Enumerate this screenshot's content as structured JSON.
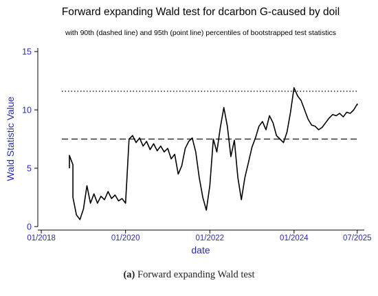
{
  "chart_data": {
    "type": "line",
    "title": "Forward expanding Wald test for dcarbon G-caused by doil",
    "subtitle": "with 90th (dashed line) and 95th (point line) percentiles of bootstrapped test statistics",
    "xlabel": "date",
    "ylabel": "Wald Statistic Value",
    "x_tick_labels": [
      "01/2018",
      "01/2020",
      "01/2022",
      "01/2024",
      "07/2025"
    ],
    "x_ticks": [
      "2018-01",
      "2020-01",
      "2022-01",
      "2024-01",
      "2025-07"
    ],
    "xlim": [
      "2017-12",
      "2025-09"
    ],
    "y_ticks": [
      0,
      5,
      10,
      15
    ],
    "ylim": [
      -0.3,
      15.3
    ],
    "grid": false,
    "colors": {
      "series": "#000000",
      "axis_text": "#2b2bb0",
      "title": "#000000"
    },
    "thresholds": [
      {
        "label": "90th percentile",
        "style": "dashed",
        "value": 7.5
      },
      {
        "label": "95th percentile",
        "style": "dotted",
        "value": 11.6
      }
    ],
    "series": [
      {
        "values": [
          [
            "2018-09",
            5.0
          ],
          [
            "2018-09",
            6.1
          ],
          [
            "2018-10",
            5.3
          ],
          [
            "2018-10",
            2.5
          ],
          [
            "2018-11",
            1.0
          ],
          [
            "2018-12",
            0.6
          ],
          [
            "2019-01",
            1.5
          ],
          [
            "2019-02",
            3.5
          ],
          [
            "2019-03",
            2.0
          ],
          [
            "2019-04",
            2.8
          ],
          [
            "2019-05",
            2.0
          ],
          [
            "2019-06",
            2.6
          ],
          [
            "2019-07",
            2.3
          ],
          [
            "2019-08",
            3.0
          ],
          [
            "2019-09",
            2.4
          ],
          [
            "2019-10",
            2.7
          ],
          [
            "2019-11",
            2.2
          ],
          [
            "2019-12",
            2.4
          ],
          [
            "2020-01",
            2.0
          ],
          [
            "2020-02",
            7.5
          ],
          [
            "2020-03",
            7.8
          ],
          [
            "2020-04",
            7.2
          ],
          [
            "2020-05",
            7.6
          ],
          [
            "2020-06",
            6.9
          ],
          [
            "2020-07",
            7.3
          ],
          [
            "2020-08",
            6.6
          ],
          [
            "2020-09",
            7.1
          ],
          [
            "2020-10",
            6.5
          ],
          [
            "2020-11",
            6.9
          ],
          [
            "2020-12",
            6.4
          ],
          [
            "2021-01",
            6.7
          ],
          [
            "2021-02",
            5.8
          ],
          [
            "2021-03",
            6.2
          ],
          [
            "2021-04",
            4.5
          ],
          [
            "2021-05",
            5.2
          ],
          [
            "2021-06",
            6.7
          ],
          [
            "2021-07",
            7.3
          ],
          [
            "2021-08",
            7.6
          ],
          [
            "2021-09",
            6.4
          ],
          [
            "2021-10",
            4.2
          ],
          [
            "2021-11",
            2.5
          ],
          [
            "2021-12",
            1.4
          ],
          [
            "2022-01",
            3.5
          ],
          [
            "2022-02",
            7.5
          ],
          [
            "2022-03",
            6.4
          ],
          [
            "2022-04",
            8.5
          ],
          [
            "2022-05",
            10.2
          ],
          [
            "2022-06",
            8.6
          ],
          [
            "2022-07",
            6.0
          ],
          [
            "2022-08",
            7.4
          ],
          [
            "2022-09",
            4.2
          ],
          [
            "2022-10",
            2.3
          ],
          [
            "2022-11",
            4.2
          ],
          [
            "2022-12",
            5.5
          ],
          [
            "2023-01",
            6.8
          ],
          [
            "2023-02",
            7.6
          ],
          [
            "2023-03",
            8.6
          ],
          [
            "2023-04",
            9.0
          ],
          [
            "2023-05",
            8.3
          ],
          [
            "2023-06",
            9.5
          ],
          [
            "2023-07",
            8.9
          ],
          [
            "2023-08",
            7.8
          ],
          [
            "2023-09",
            7.5
          ],
          [
            "2023-10",
            7.2
          ],
          [
            "2023-11",
            8.1
          ],
          [
            "2023-12",
            9.8
          ],
          [
            "2024-01",
            11.9
          ],
          [
            "2024-02",
            11.2
          ],
          [
            "2024-03",
            10.8
          ],
          [
            "2024-04",
            10.0
          ],
          [
            "2024-05",
            9.2
          ],
          [
            "2024-06",
            8.7
          ],
          [
            "2024-07",
            8.6
          ],
          [
            "2024-08",
            8.3
          ],
          [
            "2024-09",
            8.5
          ],
          [
            "2024-10",
            8.9
          ],
          [
            "2024-11",
            9.3
          ],
          [
            "2024-12",
            9.6
          ],
          [
            "2025-01",
            9.5
          ],
          [
            "2025-02",
            9.7
          ],
          [
            "2025-03",
            9.4
          ],
          [
            "2025-04",
            9.8
          ],
          [
            "2025-05",
            9.7
          ],
          [
            "2025-06",
            10.0
          ],
          [
            "2025-07",
            10.5
          ],
          [
            "2025-07",
            10.4
          ]
        ]
      }
    ]
  },
  "caption": {
    "label": "(a)",
    "text": "Forward expanding Wald test"
  }
}
